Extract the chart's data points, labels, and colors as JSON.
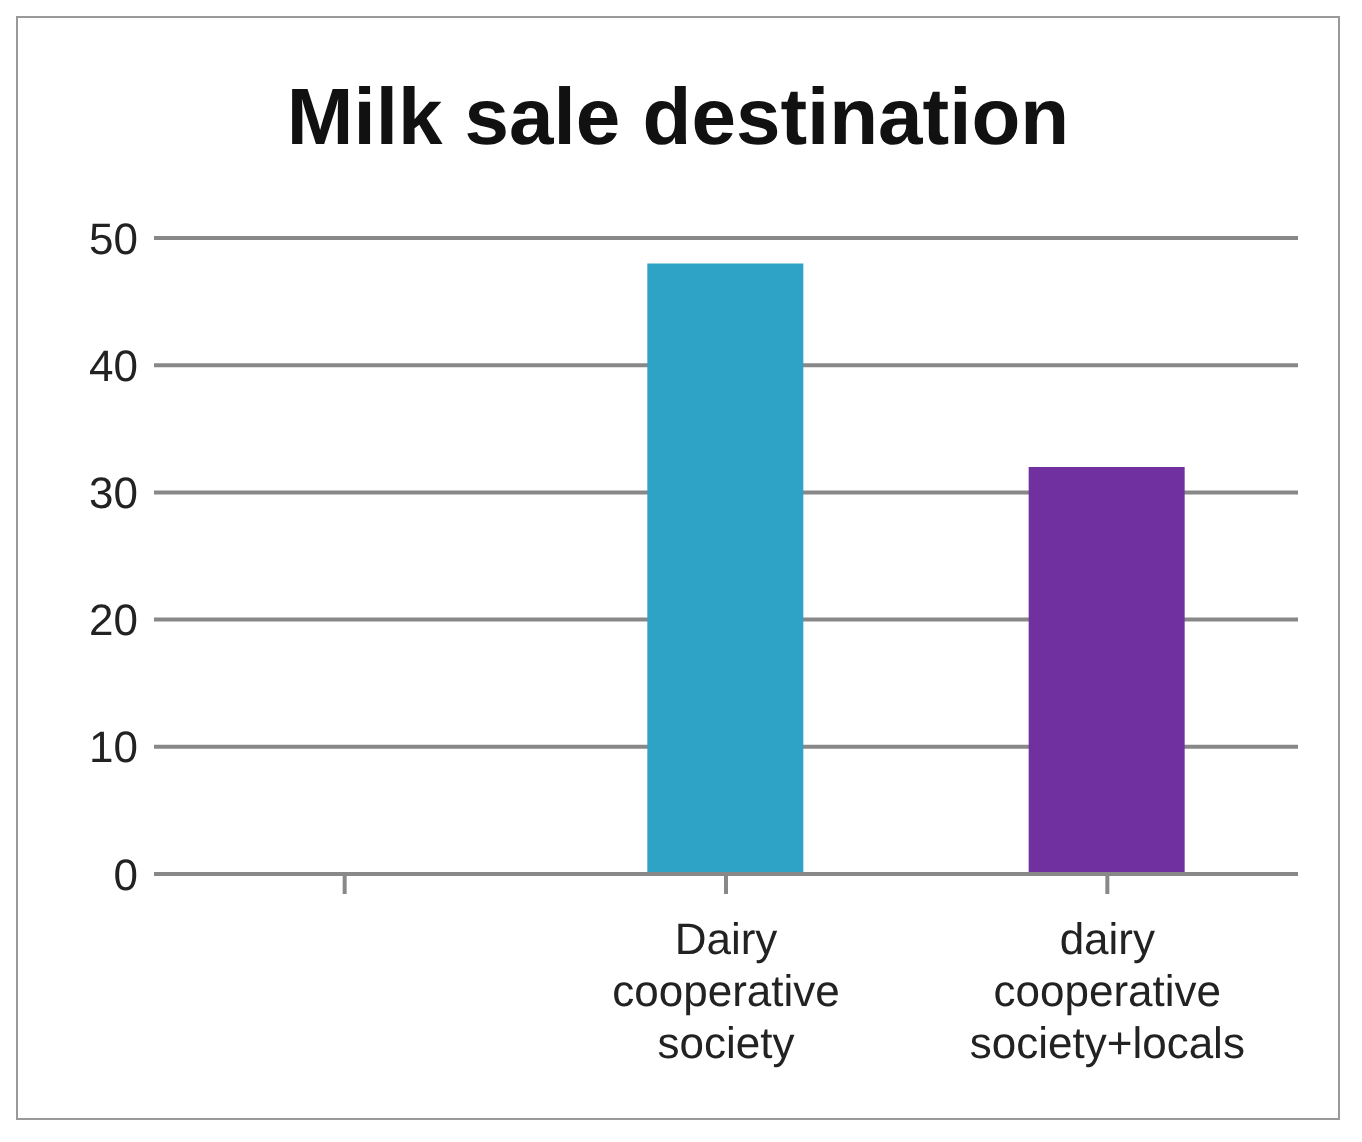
{
  "chart_data": {
    "type": "bar",
    "title": "Milk sale destination",
    "categories": [
      null,
      "Dairy cooperative society",
      "dairy cooperative society+locals"
    ],
    "values": [
      null,
      48,
      32
    ],
    "colors": [
      "#2ea3c6",
      "#2ea3c6",
      "#7030a0"
    ],
    "ylim": [
      0,
      50
    ],
    "yticks": [
      0,
      10,
      20,
      30,
      40,
      50
    ],
    "grid": "y"
  }
}
